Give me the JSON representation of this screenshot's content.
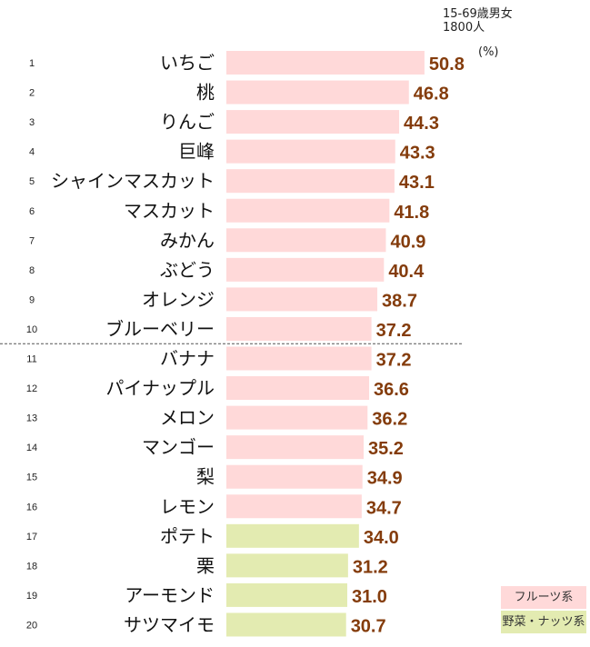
{
  "chart_data": {
    "type": "bar",
    "orientation": "horizontal",
    "note_lines": [
      "15-69歳男女",
      "1800人"
    ],
    "unit": "(%)",
    "ranks": [
      "1",
      "2",
      "3",
      "4",
      "5",
      "6",
      "7",
      "8",
      "9",
      "10",
      "11",
      "12",
      "13",
      "14",
      "15",
      "16",
      "17",
      "18",
      "19",
      "20"
    ],
    "categories": [
      "いちご",
      "桃",
      "りんご",
      "巨峰",
      "シャインマスカット",
      "マスカット",
      "みかん",
      "ぶどう",
      "オレンジ",
      "ブルーベリー",
      "バナナ",
      "パイナップル",
      "メロン",
      "マンゴー",
      "梨",
      "レモン",
      "ポテト",
      "栗",
      "アーモンド",
      "サツマイモ"
    ],
    "values": [
      50.8,
      46.8,
      44.3,
      43.3,
      43.1,
      41.8,
      40.9,
      40.4,
      38.7,
      37.2,
      37.2,
      36.6,
      36.2,
      35.2,
      34.9,
      34.7,
      34.0,
      31.2,
      31.0,
      30.7
    ],
    "value_labels": [
      "50.8",
      "46.8",
      "44.3",
      "43.3",
      "43.1",
      "41.8",
      "40.9",
      "40.4",
      "38.7",
      "37.2",
      "37.2",
      "36.6",
      "36.2",
      "35.2",
      "34.9",
      "34.7",
      "34.0",
      "31.2",
      "31.0",
      "30.7"
    ],
    "groups": [
      "fruit",
      "fruit",
      "fruit",
      "fruit",
      "fruit",
      "fruit",
      "fruit",
      "fruit",
      "fruit",
      "fruit",
      "fruit",
      "fruit",
      "fruit",
      "fruit",
      "fruit",
      "fruit",
      "veg",
      "veg",
      "veg",
      "veg"
    ],
    "divider_after_rank": 10,
    "legend": [
      {
        "key": "fruit",
        "label": "フルーツ系",
        "color": "#FFD9D9"
      },
      {
        "key": "veg",
        "label": "野菜・ナッツ系",
        "color": "#E3EBB1"
      }
    ],
    "value_color": "#843C0C",
    "xlim": [
      0,
      55
    ],
    "legend_position": "bottom-right"
  }
}
